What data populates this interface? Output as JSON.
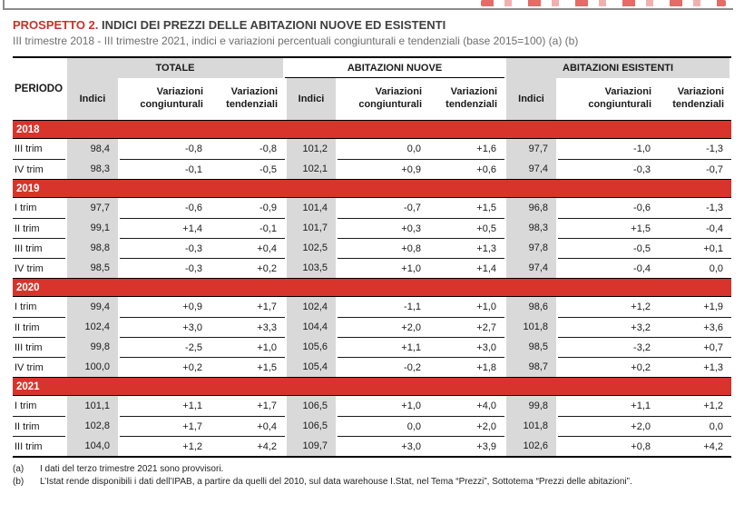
{
  "page": {
    "title_label": "PROSPETTO 2.",
    "title_text": "INDICI DEI PREZZI DELLE ABITAZIONI NUOVE ED ESISTENTI",
    "subtitle": "III trimestre 2018 - III trimestre 2021, indici e variazioni percentuali congiunturali e tendenziali (base 2015=100) (a) (b)"
  },
  "colors": {
    "title_red": "#c8302c",
    "banner_red": "#d8342b",
    "header_gray": "#d9d9d9",
    "subtitle_gray": "#6e6e6e"
  },
  "table": {
    "period_header": "PERIODO",
    "groups": [
      {
        "label": "TOTALE",
        "shaded": true
      },
      {
        "label": "ABITAZIONI NUOVE",
        "shaded": false
      },
      {
        "label": "ABITAZIONI ESISTENTI",
        "shaded": true
      }
    ],
    "subheaders": {
      "indici": "Indici",
      "congiunturali": "Variazioni congiunturali",
      "tendenziali": "Variazioni tendenziali"
    },
    "sections": [
      {
        "year": "2018",
        "rows": [
          {
            "period": "III trim",
            "values": [
              "98,4",
              "-0,8",
              "-0,8",
              "101,2",
              "0,0",
              "+1,6",
              "97,7",
              "-1,0",
              "-1,3"
            ]
          },
          {
            "period": "IV trim",
            "values": [
              "98,3",
              "-0,1",
              "-0,5",
              "102,1",
              "+0,9",
              "+0,6",
              "97,4",
              "-0,3",
              "-0,7"
            ]
          }
        ]
      },
      {
        "year": "2019",
        "rows": [
          {
            "period": "I trim",
            "values": [
              "97,7",
              "-0,6",
              "-0,9",
              "101,4",
              "-0,7",
              "+1,5",
              "96,8",
              "-0,6",
              "-1,3"
            ]
          },
          {
            "period": "II trim",
            "values": [
              "99,1",
              "+1,4",
              "-0,1",
              "101,7",
              "+0,3",
              "+0,5",
              "98,3",
              "+1,5",
              "-0,4"
            ]
          },
          {
            "period": "III trim",
            "values": [
              "98,8",
              "-0,3",
              "+0,4",
              "102,5",
              "+0,8",
              "+1,3",
              "97,8",
              "-0,5",
              "+0,1"
            ]
          },
          {
            "period": "IV trim",
            "values": [
              "98,5",
              "-0,3",
              "+0,2",
              "103,5",
              "+1,0",
              "+1,4",
              "97,4",
              "-0,4",
              "0,0"
            ]
          }
        ]
      },
      {
        "year": "2020",
        "rows": [
          {
            "period": "I trim",
            "values": [
              "99,4",
              "+0,9",
              "+1,7",
              "102,4",
              "-1,1",
              "+1,0",
              "98,6",
              "+1,2",
              "+1,9"
            ]
          },
          {
            "period": "II trim",
            "values": [
              "102,4",
              "+3,0",
              "+3,3",
              "104,4",
              "+2,0",
              "+2,7",
              "101,8",
              "+3,2",
              "+3,6"
            ]
          },
          {
            "period": "III trim",
            "values": [
              "99,8",
              "-2,5",
              "+1,0",
              "105,6",
              "+1,1",
              "+3,0",
              "98,5",
              "-3,2",
              "+0,7"
            ]
          },
          {
            "period": "IV trim",
            "values": [
              "100,0",
              "+0,2",
              "+1,5",
              "105,4",
              "-0,2",
              "+1,8",
              "98,7",
              "+0,2",
              "+1,3"
            ]
          }
        ]
      },
      {
        "year": "2021",
        "rows": [
          {
            "period": "I trim",
            "values": [
              "101,1",
              "+1,1",
              "+1,7",
              "106,5",
              "+1,0",
              "+4,0",
              "99,8",
              "+1,1",
              "+1,2"
            ]
          },
          {
            "period": "II trim",
            "values": [
              "102,8",
              "+1,7",
              "+0,4",
              "106,5",
              "0,0",
              "+2,0",
              "101,8",
              "+2,0",
              "0,0"
            ]
          },
          {
            "period": "III trim",
            "values": [
              "104,0",
              "+1,2",
              "+4,2",
              "109,7",
              "+3,0",
              "+3,9",
              "102,6",
              "+0,8",
              "+4,2"
            ]
          }
        ]
      }
    ]
  },
  "footnotes": [
    {
      "label": "(a)",
      "text": "I dati del terzo trimestre 2021 sono provvisori."
    },
    {
      "label": "(b)",
      "text": "L’Istat rende disponibili i dati dell’IPAB, a partire da quelli del 2010, sul data warehouse I.Stat, nel Tema “Prezzi”, Sottotema “Prezzi delle abitazioni”."
    }
  ]
}
